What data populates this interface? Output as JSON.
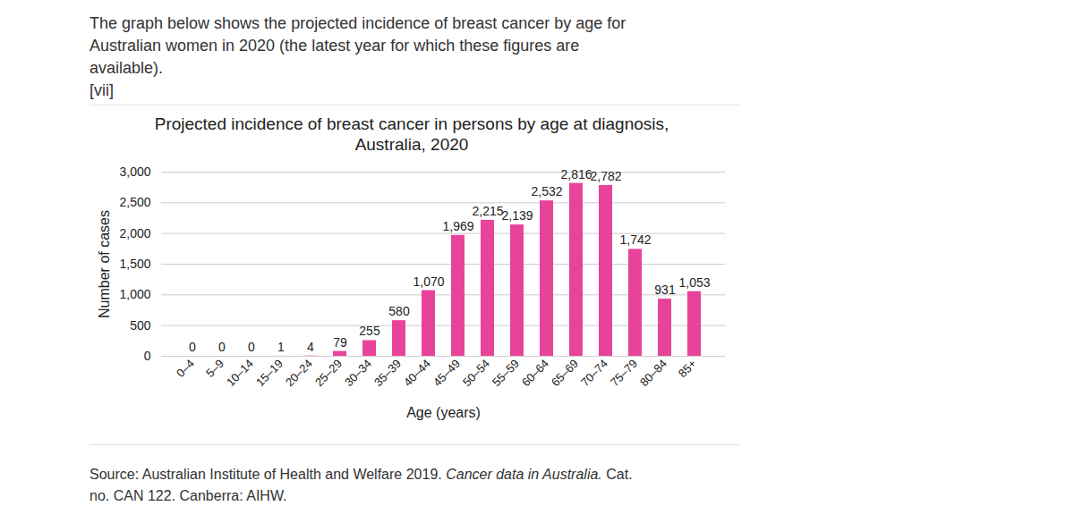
{
  "header": {
    "text": "The graph below shows the projected incidence of breast cancer by age for Australian women in 2020 (the latest year for which these figures are available).",
    "reference": "[vii]"
  },
  "chart_data": {
    "type": "bar",
    "title": "Projected incidence of breast cancer in persons by age at diagnosis, Australia, 2020",
    "x_label": "Age (years)",
    "y_label": "Number of cases",
    "categories": [
      "0–4",
      "5–9",
      "10–14",
      "15–19",
      "20–24",
      "25–29",
      "30–34",
      "35–39",
      "40–44",
      "45–49",
      "50–54",
      "55–59",
      "60–64",
      "65–69",
      "70–74",
      "75–79",
      "80–84",
      "85+"
    ],
    "values": [
      0,
      0,
      0,
      1,
      4,
      79,
      255,
      580,
      1070,
      1969,
      2215,
      2139,
      2532,
      2816,
      2782,
      1742,
      931,
      1053
    ],
    "value_labels": [
      "0",
      "0",
      "0",
      "1",
      "4",
      "79",
      "255",
      "580",
      "1,070",
      "1,969",
      "2,215",
      "2,139",
      "2,532",
      "2,816",
      "2,782",
      "1,742",
      "931",
      "1,053"
    ],
    "color": "#e8439a",
    "ylim": [
      0,
      3000
    ],
    "yticks": [
      0,
      500,
      {
        "value": 1000,
        "label": "1,000"
      },
      {
        "value": 1500,
        "label": "1,500"
      },
      {
        "value": 2000,
        "label": "2,000"
      },
      {
        "value": 2500,
        "label": "2,500"
      },
      {
        "value": 3000,
        "label": "3,000"
      }
    ],
    "grid": true,
    "data_labels": true
  },
  "caption": {
    "parts": [
      "Source: Australian Institute of Health and Welfare 2019.",
      "Cancer data in Australia.",
      "Cat. no. CAN 122. Canberra: AIHW."
    ]
  }
}
